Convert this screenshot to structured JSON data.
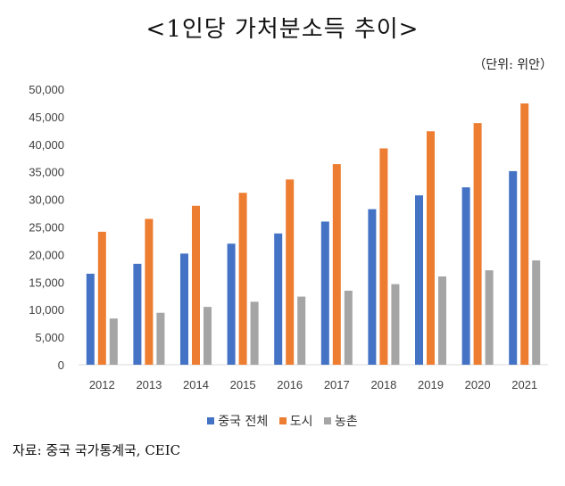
{
  "header": {
    "title": "<1인당 가처분소득 추이>",
    "unit": "（단위: 위안）"
  },
  "footer": {
    "source": "자료: 중국 국가통계국, CEIC"
  },
  "colors": {
    "china": "#4472c4",
    "urban": "#ed7d31",
    "rural": "#a5a5a5"
  },
  "chart_data": {
    "type": "bar",
    "categories": [
      "2012",
      "2013",
      "2014",
      "2015",
      "2016",
      "2017",
      "2018",
      "2019",
      "2020",
      "2021"
    ],
    "series": [
      {
        "name": "중국 전체",
        "values": [
          16510,
          18311,
          20167,
          21966,
          23821,
          25974,
          28228,
          30733,
          32189,
          35128
        ]
      },
      {
        "name": "도시",
        "values": [
          24127,
          26467,
          28844,
          31195,
          33616,
          36396,
          39251,
          42359,
          43834,
          47412
        ]
      },
      {
        "name": "농촌",
        "values": [
          8389,
          9430,
          10489,
          11422,
          12363,
          13432,
          14617,
          16021,
          17131,
          18931
        ]
      }
    ],
    "yticks": [
      "0",
      "5,000",
      "10,000",
      "15,000",
      "20,000",
      "25,000",
      "30,000",
      "35,000",
      "40,000",
      "45,000",
      "50,000"
    ],
    "ylim": [
      0,
      50000
    ],
    "grid": false,
    "legend": "bottom"
  }
}
